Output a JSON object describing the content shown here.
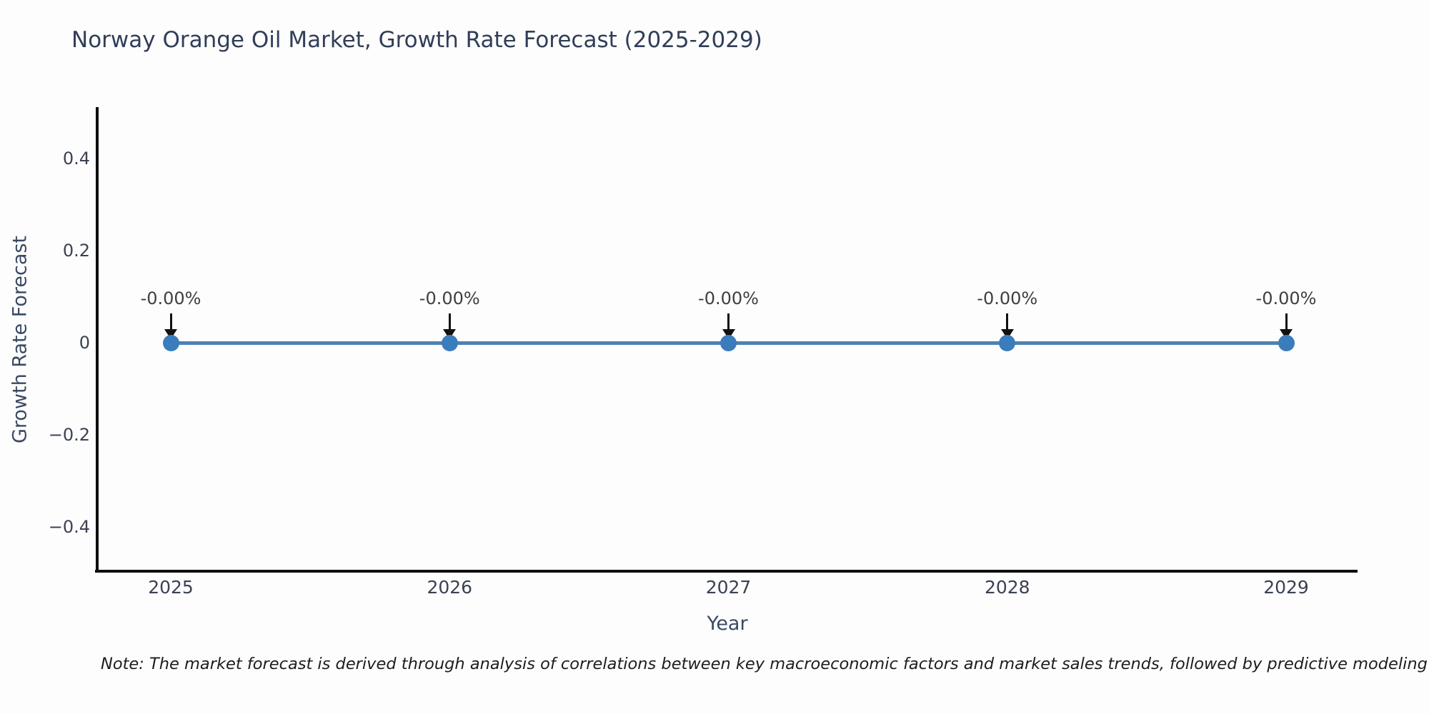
{
  "title": "Norway Orange Oil Market, Growth Rate Forecast (2025-2029)",
  "note": "Note: The market forecast is derived through analysis of correlations between key macroeconomic factors and market sales trends, followed by predictive modeling to project future sa",
  "chart_data": {
    "type": "line",
    "title": "Norway Orange Oil Market, Growth Rate Forecast (2025-2029)",
    "xlabel": "Year",
    "ylabel": "Growth Rate Forecast",
    "x": [
      2025,
      2026,
      2027,
      2028,
      2029
    ],
    "series": [
      {
        "name": "Growth Rate Forecast",
        "values": [
          0,
          0,
          0,
          0,
          0
        ]
      }
    ],
    "point_labels": [
      "-0.00%",
      "-0.00%",
      "-0.00%",
      "-0.00%",
      "-0.00%"
    ],
    "xtick_labels": [
      "2025",
      "2026",
      "2027",
      "2028",
      "2029"
    ],
    "yticks": [
      0.4,
      0.2,
      0,
      -0.2,
      -0.4
    ],
    "ytick_labels": [
      "0.4",
      "0.2",
      "0",
      "−0.2",
      "−0.4"
    ],
    "ylim": [
      -0.5,
      0.51
    ],
    "grid": false,
    "legend_position": "none",
    "line_color": "#4d82b0",
    "marker_color": "#3b7cbd",
    "annotation_arrow_color": "#111111",
    "axis_color": "#0e0e0e"
  }
}
